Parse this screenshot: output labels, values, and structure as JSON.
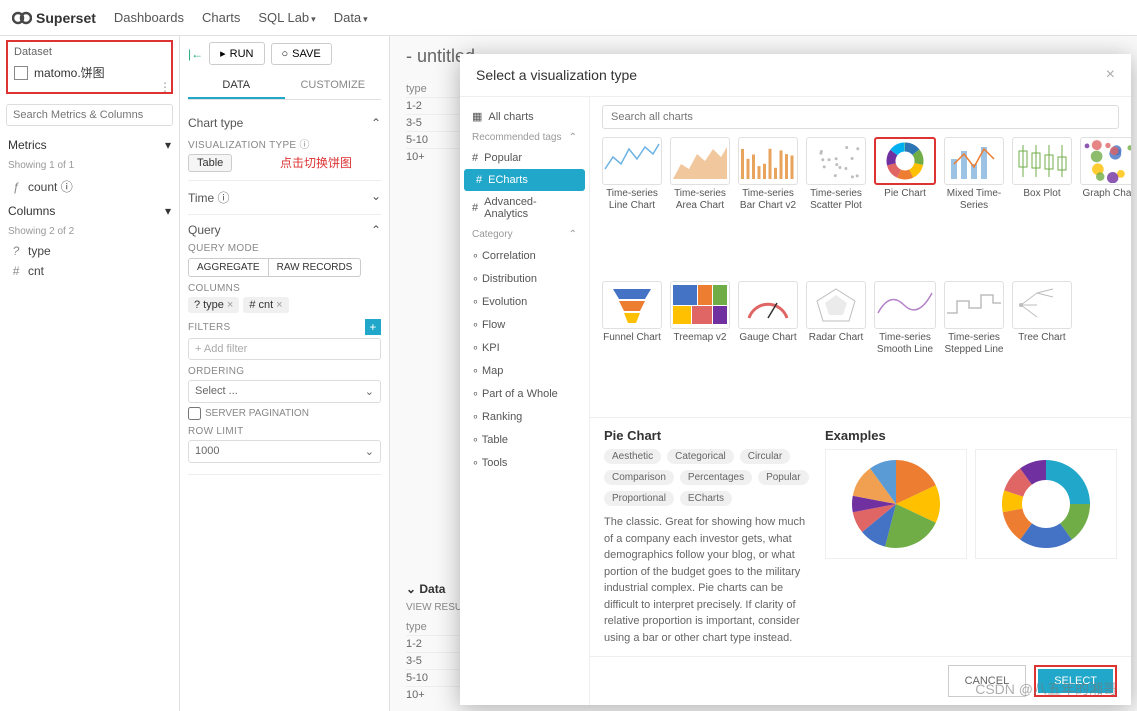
{
  "nav": {
    "brand": "Superset",
    "links": [
      "Dashboards",
      "Charts",
      "SQL Lab",
      "Data"
    ]
  },
  "leftPanel": {
    "datasetLabel": "Dataset",
    "datasetName": "matomo.饼图",
    "searchPlaceholder": "Search Metrics & Columns",
    "metrics": {
      "header": "Metrics",
      "showing": "Showing 1 of 1",
      "items": [
        {
          "icon": "ƒ",
          "name": "count ⓘ"
        }
      ]
    },
    "columns": {
      "header": "Columns",
      "showing": "Showing 2 of 2",
      "items": [
        {
          "icon": "?",
          "name": "type"
        },
        {
          "icon": "#",
          "name": "cnt"
        }
      ]
    }
  },
  "midPanel": {
    "runLabel": "RUN",
    "saveLabel": "SAVE",
    "tabs": [
      "DATA",
      "CUSTOMIZE"
    ],
    "chartType": {
      "header": "Chart type",
      "vizLabel": "VISUALIZATION TYPE ⓘ",
      "vizValue": "Table",
      "annotation": "点击切换饼图"
    },
    "time": {
      "header": "Time ⓘ"
    },
    "query": {
      "header": "Query",
      "queryModeLabel": "QUERY MODE",
      "modeAggregate": "AGGREGATE",
      "modeRaw": "RAW RECORDS",
      "columnsLabel": "COLUMNS",
      "columnChips": [
        {
          "icon": "?",
          "text": "type"
        },
        {
          "icon": "#",
          "text": "cnt"
        }
      ],
      "filtersLabel": "FILTERS",
      "addFilter": "+ Add filter",
      "orderingLabel": "ORDERING",
      "orderingValue": "Select ...",
      "serverPagination": "SERVER PAGINATION",
      "rowLimitLabel": "ROW LIMIT",
      "rowLimitValue": "1000"
    }
  },
  "rightPanel": {
    "title": "- untitled",
    "previewCols": [
      "type"
    ],
    "previewRows": [
      "1-2",
      "3-5",
      "5-10",
      "10+"
    ],
    "dataHeader": "Data",
    "viewResults": "VIEW RESULT",
    "dataCols": [
      "type"
    ],
    "dataRows": [
      "1-2",
      "3-5",
      "5-10",
      "10+"
    ]
  },
  "modal": {
    "title": "Select a visualization type",
    "sidebar": {
      "allCharts": "All charts",
      "recTags": "Recommended tags",
      "tags": [
        "Popular",
        "ECharts",
        "Advanced-Analytics"
      ],
      "activeTag": "ECharts",
      "categoryLabel": "Category",
      "categories": [
        "Correlation",
        "Distribution",
        "Evolution",
        "Flow",
        "KPI",
        "Map",
        "Part of a Whole",
        "Ranking",
        "Table",
        "Tools"
      ]
    },
    "searchPlaceholder": "Search all charts",
    "charts": [
      {
        "name": "Time-series Line Chart",
        "type": "line",
        "color": "#6cb2e4"
      },
      {
        "name": "Time-series Area Chart",
        "type": "area",
        "color": "#e8a35d"
      },
      {
        "name": "Time-series Bar Chart v2",
        "type": "bars",
        "color": "#e8a35d"
      },
      {
        "name": "Time-series Scatter Plot",
        "type": "scatter",
        "color": "#bdbdbd"
      },
      {
        "name": "Pie Chart",
        "type": "donut",
        "selected": true
      },
      {
        "name": "Mixed Time-Series",
        "type": "mixed",
        "color": "#5b9bd5"
      },
      {
        "name": "Box Plot",
        "type": "box",
        "color": "#70ad47"
      },
      {
        "name": "Graph Chart",
        "type": "network"
      },
      {
        "name": "Funnel Chart",
        "type": "funnel"
      },
      {
        "name": "Treemap v2",
        "type": "treemap"
      },
      {
        "name": "Gauge Chart",
        "type": "gauge",
        "color": "#e06666"
      },
      {
        "name": "Radar Chart",
        "type": "radar",
        "color": "#bdbdbd"
      },
      {
        "name": "Time-series Smooth Line",
        "type": "smooth",
        "color": "#b482c9"
      },
      {
        "name": "Time-series Stepped Line",
        "type": "step",
        "color": "#bdbdbd"
      },
      {
        "name": "Tree Chart",
        "type": "tree",
        "color": "#bdbdbd"
      }
    ],
    "donutColors": [
      "#2e75b6",
      "#70ad47",
      "#ffc000",
      "#ed7d31",
      "#e06666",
      "#7030a0",
      "#00b0f0",
      "#92d050"
    ],
    "detail": {
      "title": "Pie Chart",
      "tags": [
        "Aesthetic",
        "Categorical",
        "Circular",
        "Comparison",
        "Percentages",
        "Popular",
        "Proportional",
        "ECharts"
      ],
      "desc": "The classic. Great for showing how much of a company each investor gets, what demographics follow your blog, or what portion of the budget goes to the military industrial complex. Pie charts can be difficult to interpret precisely. If clarity of relative proportion is important, consider using a bar or other chart type instead.",
      "examplesLabel": "Examples",
      "example1": {
        "type": "pie",
        "slices": [
          18,
          14,
          22,
          10,
          8,
          6,
          12,
          10
        ],
        "colors": [
          "#ed7d31",
          "#ffc000",
          "#70ad47",
          "#4472c4",
          "#e06666",
          "#7030a0",
          "#f0a050",
          "#5b9bd5"
        ]
      },
      "example2": {
        "type": "donut",
        "slices": [
          25,
          15,
          20,
          12,
          8,
          10,
          10
        ],
        "colors": [
          "#20a7c9",
          "#70ad47",
          "#4472c4",
          "#ed7d31",
          "#ffc000",
          "#e06666",
          "#7030a0"
        ]
      }
    },
    "cancelLabel": "CANCEL",
    "selectLabel": "SELECT"
  },
  "watermark": "CSDN @八五年的湘哥"
}
